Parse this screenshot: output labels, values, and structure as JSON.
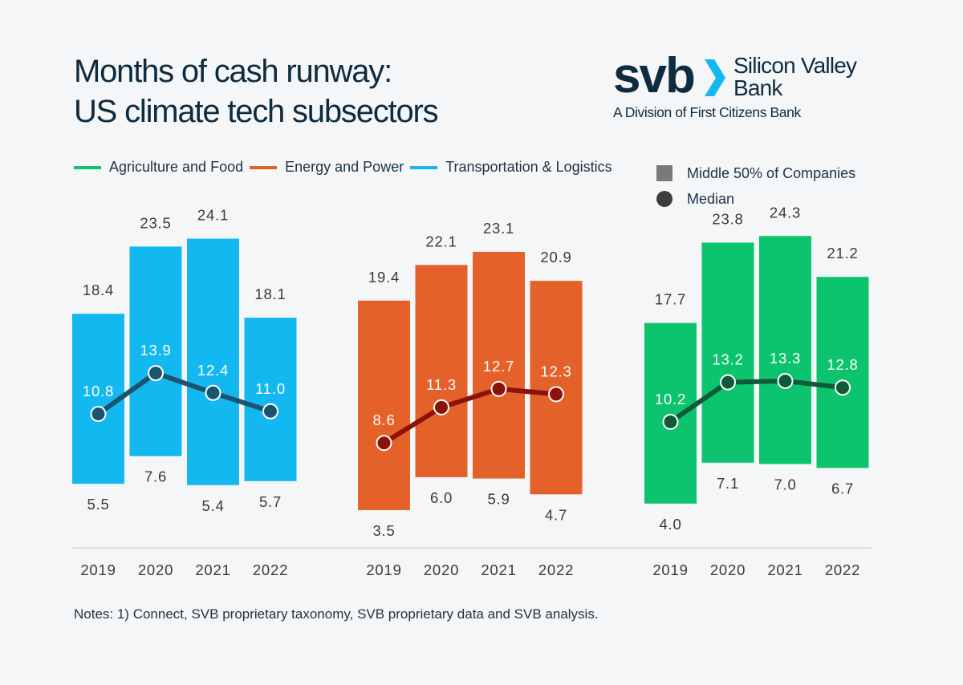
{
  "title": {
    "line1": "Months of cash runway:",
    "line2": "US climate tech subsectors"
  },
  "logo": {
    "mark": "svb",
    "name_line1": "Silicon Valley",
    "name_line2": "Bank",
    "subtitle": "A Division of First Citizens Bank"
  },
  "legend": {
    "series": [
      {
        "label": "Agriculture and Food",
        "color": "#0cc46e"
      },
      {
        "label": "Energy and Power",
        "color": "#e4622a"
      },
      {
        "label": "Transportation & Logistics",
        "color": "#14b8f0"
      }
    ],
    "range_label": "Middle 50% of Companies",
    "median_label": "Median"
  },
  "chart_data": [
    {
      "type": "bar",
      "name": "Transportation & Logistics",
      "color": "#14b8f0",
      "line_color": "#1a546e",
      "categories": [
        "2019",
        "2020",
        "2021",
        "2022"
      ],
      "upper": [
        18.4,
        23.5,
        24.1,
        18.1
      ],
      "lower": [
        5.5,
        7.6,
        5.4,
        5.7
      ],
      "median": [
        10.8,
        13.9,
        12.4,
        11.0
      ],
      "ylim": [
        0,
        30
      ]
    },
    {
      "type": "bar",
      "name": "Energy and Power",
      "color": "#e4622a",
      "line_color": "#8c1208",
      "categories": [
        "2019",
        "2020",
        "2021",
        "2022"
      ],
      "upper": [
        19.4,
        22.1,
        23.1,
        20.9
      ],
      "lower": [
        3.5,
        6.0,
        5.9,
        4.7
      ],
      "median": [
        8.6,
        11.3,
        12.7,
        12.3
      ],
      "ylim": [
        0,
        30
      ]
    },
    {
      "type": "bar",
      "name": "Agriculture and Food",
      "color": "#0cc46e",
      "line_color": "#0f5a3a",
      "categories": [
        "2019",
        "2020",
        "2021",
        "2022"
      ],
      "upper": [
        17.7,
        23.8,
        24.3,
        21.2
      ],
      "lower": [
        4.0,
        7.1,
        7.0,
        6.7
      ],
      "median": [
        10.2,
        13.2,
        13.3,
        12.8
      ],
      "ylim": [
        0,
        30
      ]
    }
  ],
  "notes": "Notes: 1) Connect, SVB proprietary taxonomy, SVB proprietary data and SVB analysis."
}
